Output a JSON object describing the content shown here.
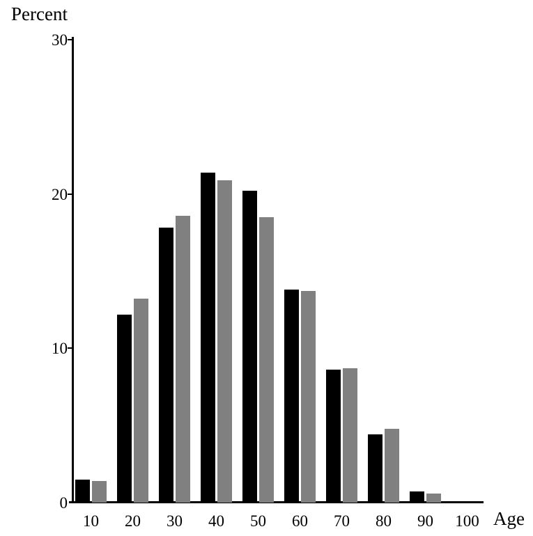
{
  "chart_data": {
    "type": "bar",
    "title": "",
    "ylabel": "Percent",
    "xlabel": "Age",
    "categories": [
      "10",
      "20",
      "30",
      "40",
      "50",
      "60",
      "70",
      "80",
      "90",
      "100"
    ],
    "series": [
      {
        "name": "black",
        "color": "#000000",
        "values": [
          1.5,
          12.2,
          17.8,
          21.4,
          20.2,
          13.8,
          8.6,
          4.4,
          0.7,
          0
        ]
      },
      {
        "name": "gray",
        "color": "#808080",
        "values": [
          1.4,
          13.2,
          18.6,
          20.9,
          18.5,
          13.7,
          8.7,
          4.8,
          0.6,
          0
        ]
      }
    ],
    "ylim": [
      0,
      30
    ],
    "yticks": [
      0,
      10,
      20,
      30
    ],
    "grid": false,
    "legend": "none",
    "axis_color": "#000000",
    "background": "#ffffff"
  }
}
